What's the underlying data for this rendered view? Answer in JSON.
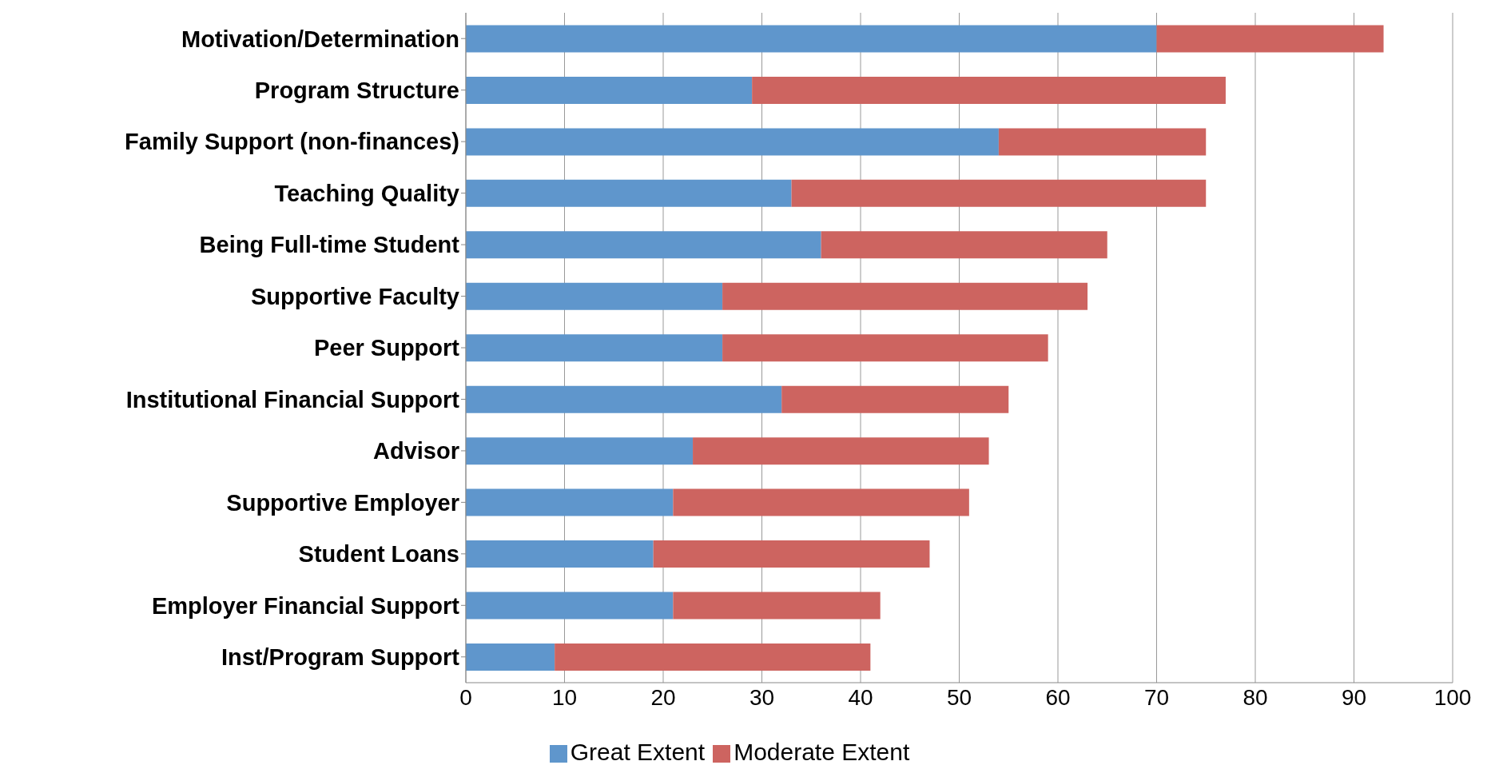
{
  "chart_data": {
    "type": "bar",
    "orientation": "horizontal",
    "stacked": true,
    "categories": [
      "Motivation/Determination",
      "Program Structure",
      "Family Support (non-finances)",
      "Teaching Quality",
      "Being Full-time Student",
      "Supportive Faculty",
      "Peer Support",
      "Institutional Financial Support",
      "Advisor",
      "Supportive Employer",
      "Student Loans",
      "Employer Financial Support",
      "Inst/Program Support"
    ],
    "series": [
      {
        "name": "Great Extent",
        "color": "#5f96cc",
        "values": [
          70,
          29,
          54,
          33,
          36,
          26,
          26,
          32,
          23,
          21,
          19,
          21,
          9
        ]
      },
      {
        "name": "Moderate Extent",
        "color": "#cd6460",
        "values": [
          23,
          48,
          21,
          42,
          29,
          37,
          33,
          23,
          30,
          30,
          28,
          21,
          32
        ]
      }
    ],
    "xlim": [
      0,
      100
    ],
    "xticks": [
      0,
      10,
      20,
      30,
      40,
      50,
      60,
      70,
      80,
      90,
      100
    ],
    "grid": "x",
    "legend": "bottom"
  }
}
